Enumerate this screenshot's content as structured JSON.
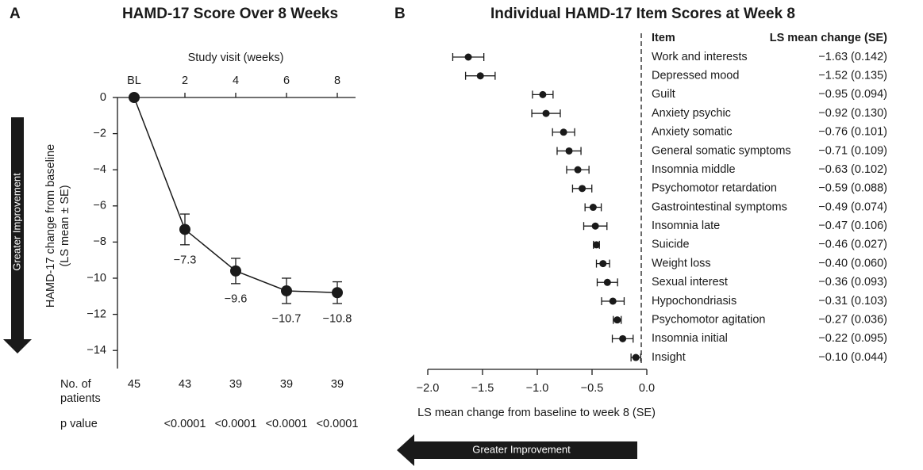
{
  "chart_data": [
    {
      "type": "line",
      "panel": "A",
      "title": "HAMD-17 Score Over 8 Weeks",
      "xlabel": "Study visit (weeks)",
      "ylabel": [
        "HAMD-17 change from baseline",
        "(LS mean ± SE)"
      ],
      "annotation": "Greater Improvement",
      "categories": [
        "BL",
        "2",
        "4",
        "6",
        "8"
      ],
      "values": [
        0,
        -7.3,
        -9.6,
        -10.7,
        -10.8
      ],
      "errors": [
        0,
        0.85,
        0.7,
        0.7,
        0.6
      ],
      "value_labels": [
        null,
        "−7.3",
        "−9.6",
        "−10.7",
        "−10.8"
      ],
      "color": "#1a1a1a",
      "ylim": [
        -15,
        0
      ],
      "yticks": [
        0,
        {
          "value": -2,
          "label": "−2"
        },
        {
          "value": -4,
          "label": "−4"
        },
        {
          "value": -6,
          "label": "−6"
        },
        {
          "value": -8,
          "label": "−8"
        },
        {
          "value": -10,
          "label": "−10"
        },
        {
          "value": -12,
          "label": "−12"
        },
        {
          "value": -14,
          "label": "−14"
        }
      ],
      "table": {
        "rows": [
          {
            "label": [
              "No. of",
              "patients"
            ],
            "cells": [
              45,
              43,
              39,
              39,
              39
            ]
          },
          {
            "label": [
              "p value"
            ],
            "cells": [
              null,
              "<0.0001",
              "<0.0001",
              "<0.0001",
              "<0.0001"
            ]
          }
        ]
      }
    },
    {
      "type": "forest",
      "panel": "B",
      "title": "Individual HAMD-17 Item Scores at Week 8",
      "xlabel": "LS mean change from baseline to week 8 (SE)",
      "annotation": "Greater Improvement",
      "column_headers": [
        "Item",
        "LS mean change (SE)"
      ],
      "color": "#1a1a1a",
      "categories": [
        "Work and interests",
        "Depressed mood",
        "Guilt",
        "Anxiety psychic",
        "Anxiety somatic",
        "General somatic symptoms",
        "Insomnia middle",
        "Psychomotor retardation",
        "Gastrointestinal symptoms",
        "Insomnia late",
        "Suicide",
        "Weight loss",
        "Sexual interest",
        "Hypochondriasis",
        "Psychomotor agitation",
        "Insomnia initial",
        "Insight"
      ],
      "values": [
        -1.63,
        -1.52,
        -0.95,
        -0.92,
        -0.76,
        -0.71,
        -0.63,
        -0.59,
        -0.49,
        -0.47,
        -0.46,
        -0.4,
        -0.36,
        -0.31,
        -0.27,
        -0.22,
        -0.1
      ],
      "errors": [
        0.142,
        0.135,
        0.094,
        0.13,
        0.101,
        0.109,
        0.102,
        0.088,
        0.074,
        0.106,
        0.027,
        0.06,
        0.093,
        0.103,
        0.036,
        0.095,
        0.044
      ],
      "value_labels": [
        "−1.63 (0.142)",
        "−1.52 (0.135)",
        "−0.95 (0.094)",
        "−0.92 (0.130)",
        "−0.76 (0.101)",
        "−0.71 (0.109)",
        "−0.63 (0.102)",
        "−0.59 (0.088)",
        "−0.49 (0.074)",
        "−0.47 (0.106)",
        "−0.46 (0.027)",
        "−0.40 (0.060)",
        "−0.36 (0.093)",
        "−0.31 (0.103)",
        "−0.27 (0.036)",
        "−0.22 (0.095)",
        "−0.10 (0.044)"
      ],
      "xlim": [
        -2.0,
        0.0
      ],
      "xticks": [
        {
          "value": -2.0,
          "label": "−2.0"
        },
        {
          "value": -1.5,
          "label": "−1.5"
        },
        {
          "value": -1.0,
          "label": "−1.0"
        },
        {
          "value": -0.5,
          "label": "−0.5"
        },
        {
          "value": 0.0,
          "label": "0.0"
        }
      ]
    }
  ]
}
